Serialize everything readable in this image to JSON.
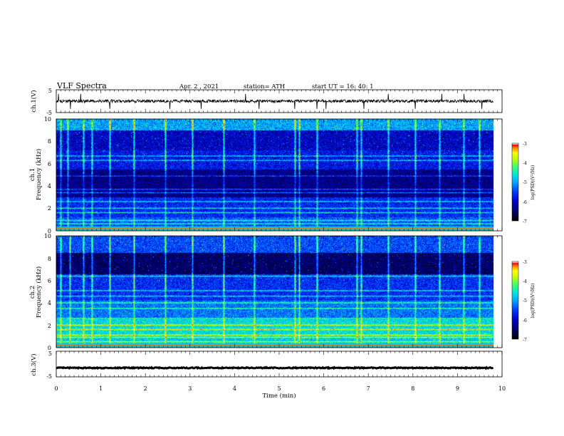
{
  "header": {
    "title": "VLF  Spectra",
    "date": "Apr. 2  , 2021",
    "station": "station= ATH",
    "start": "start  UT  =    16: 40: 1"
  },
  "colors": {
    "spectrum_scale": [
      "#000000",
      "#00006a",
      "#0000c8",
      "#0040ff",
      "#00a8ff",
      "#00e8d8",
      "#40ff70",
      "#c0ff00",
      "#ffff00",
      "#ff9000",
      "#ff0000",
      "#ffffff"
    ]
  },
  "chart_data": [
    {
      "type": "line",
      "id": "ch1-waveform",
      "ylabel": "ch.1(V)",
      "ylim": [
        -5,
        5
      ],
      "yticks": [
        "5",
        "-5"
      ],
      "xlim": [
        0,
        10
      ],
      "series": [
        {
          "values_description_level": 0,
          "mean": 0,
          "noise_amplitude": 0.5,
          "spikes": [
            0.05,
            0.32,
            0.55,
            1.2,
            2.55,
            3.25,
            4.25,
            4.55,
            5.35,
            5.85,
            6.05,
            6.9,
            7.45,
            8.05,
            8.65,
            9.15,
            9.55
          ]
        }
      ]
    },
    {
      "type": "heatmap",
      "id": "ch1-spectrogram",
      "ylabel": "ch.1",
      "ylabel2": "Frequency  (kHz)",
      "ylim": [
        0,
        10
      ],
      "yticks": [
        "0",
        "2",
        "4",
        "6",
        "8",
        "10"
      ],
      "xlim": [
        0,
        9.8
      ],
      "colorbar": {
        "label": "log(PSD)(V²/Hz)",
        "ticks": [
          "-3",
          "-4",
          "-5",
          "-6",
          "-7"
        ],
        "range": [
          -7,
          -3
        ]
      },
      "bright_lines_khz": [
        0.3,
        0.6,
        0.9,
        1.6,
        2.0,
        2.6,
        3.4,
        3.7,
        4.9,
        6.3,
        6.7
      ],
      "sferic_minutes": [
        0.1,
        0.25,
        0.6,
        0.8,
        1.2,
        1.75,
        2.45,
        3.05,
        3.75,
        4.45,
        5.35,
        5.45,
        5.85,
        6.75,
        6.85,
        7.45,
        8.05,
        8.6,
        9.15,
        9.5
      ]
    },
    {
      "type": "heatmap",
      "id": "ch2-spectrogram",
      "ylabel": "ch.2",
      "ylabel2": "Frequency  (kHz)",
      "ylim": [
        0,
        10
      ],
      "yticks": [
        "0",
        "2",
        "4",
        "6",
        "8",
        "10"
      ],
      "xlim": [
        0,
        9.8
      ],
      "colorbar": {
        "label": "log(PSD)(V²/Hz)",
        "ticks": [
          "-3",
          "-4",
          "-5",
          "-6",
          "-7"
        ],
        "range": [
          -7,
          -3
        ]
      },
      "bright_lines_khz": [
        0.5,
        0.9,
        1.1,
        1.6,
        2.0,
        2.6,
        3.5,
        4.0,
        4.6,
        5.1,
        6.4
      ],
      "sferic_minutes": [
        0.1,
        0.3,
        0.6,
        0.8,
        1.2,
        1.75,
        2.45,
        3.05,
        3.75,
        4.45,
        5.35,
        5.45,
        5.85,
        6.75,
        6.85,
        7.45,
        8.05,
        8.6,
        9.15,
        9.5
      ]
    },
    {
      "type": "line",
      "id": "ch3-waveform",
      "ylabel": "ch.3(V)",
      "ylim": [
        -5,
        5
      ],
      "yticks": [
        "5",
        "-5"
      ],
      "xlim": [
        0,
        10
      ],
      "xlabel": "Time  (min)",
      "xticks": [
        "0",
        "1",
        "2",
        "3",
        "4",
        "5",
        "6",
        "7",
        "8",
        "9",
        "10"
      ],
      "series": [
        {
          "mean": -1.5,
          "noise_amplitude": 0.2
        }
      ]
    }
  ]
}
